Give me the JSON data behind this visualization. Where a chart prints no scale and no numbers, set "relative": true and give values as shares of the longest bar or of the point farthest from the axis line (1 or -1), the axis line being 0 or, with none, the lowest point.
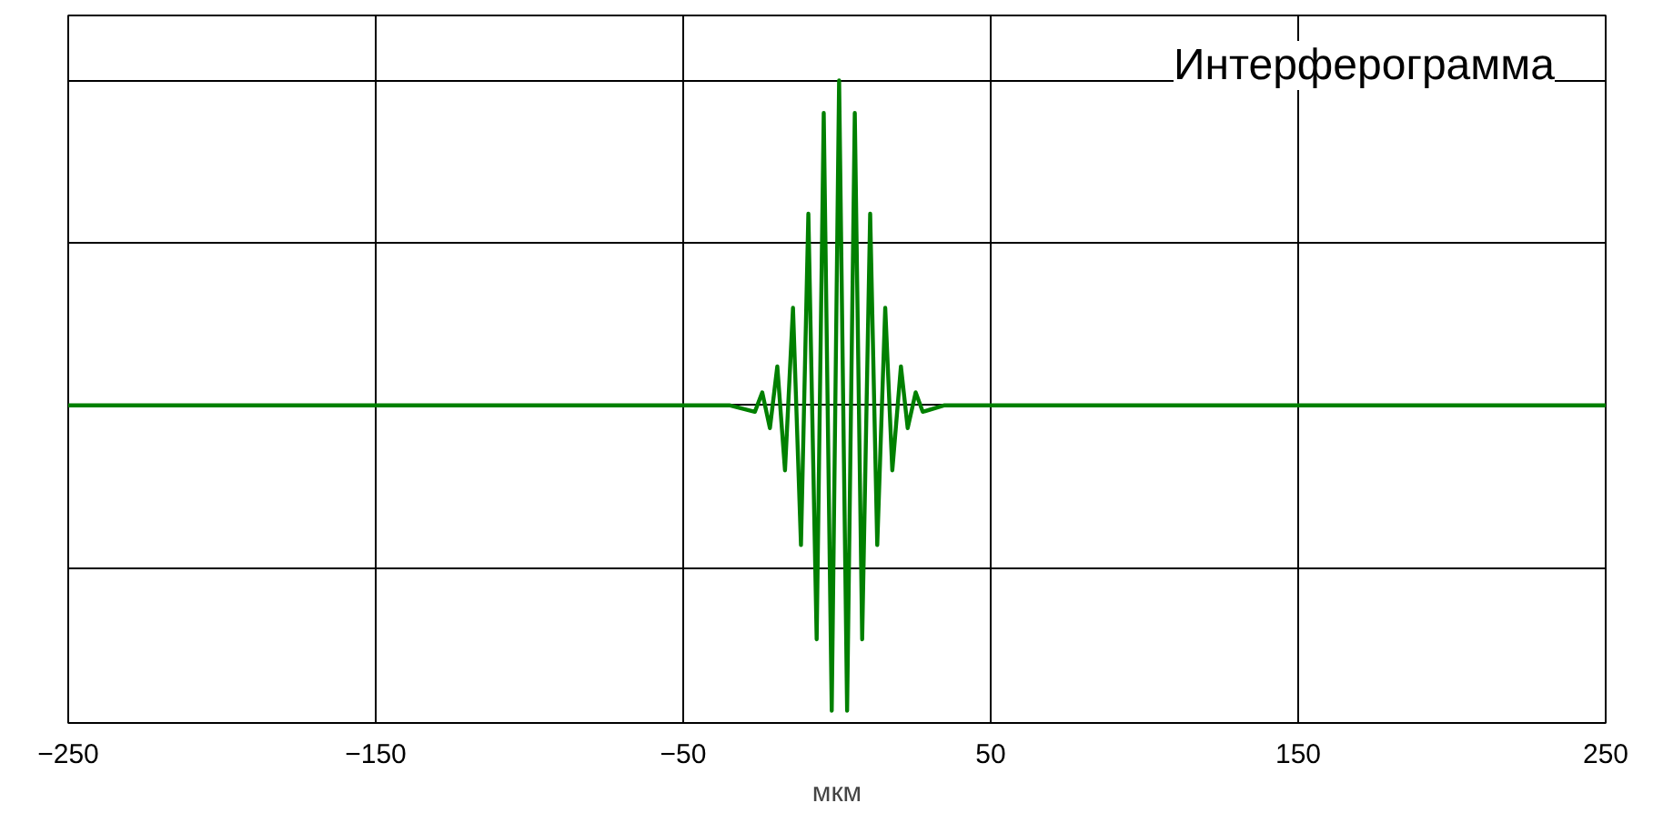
{
  "chart_data": {
    "type": "line",
    "title": "Интерферограмма",
    "xlabel": "мкм",
    "relative": true,
    "xlim": [
      -250,
      250
    ],
    "xticks": [
      -250,
      -150,
      -50,
      50,
      150,
      250
    ],
    "grid": true,
    "tick_labels": "x",
    "marker": "none",
    "line_style": "solid",
    "series": [
      {
        "color": "#008000",
        "x": [
          -250,
          -35,
          -26.7,
          -24.3,
          -21.8,
          -19.4,
          -16.9,
          -14.3,
          -11.7,
          -9.3,
          -6.6,
          -4.3,
          -1.7,
          0.7,
          3.3,
          5.8,
          8.2,
          10.8,
          13.1,
          15.7,
          18.0,
          20.8,
          23.0,
          25.6,
          27.9,
          35,
          250
        ],
        "values": [
          0,
          0,
          -0.02,
          0.04,
          -0.07,
          0.12,
          -0.2,
          0.3,
          -0.43,
          0.59,
          -0.72,
          0.9,
          -0.94,
          1,
          -0.94,
          0.9,
          -0.72,
          0.59,
          -0.43,
          0.3,
          -0.2,
          0.12,
          -0.07,
          0.04,
          -0.02,
          0,
          0
        ]
      }
    ]
  }
}
